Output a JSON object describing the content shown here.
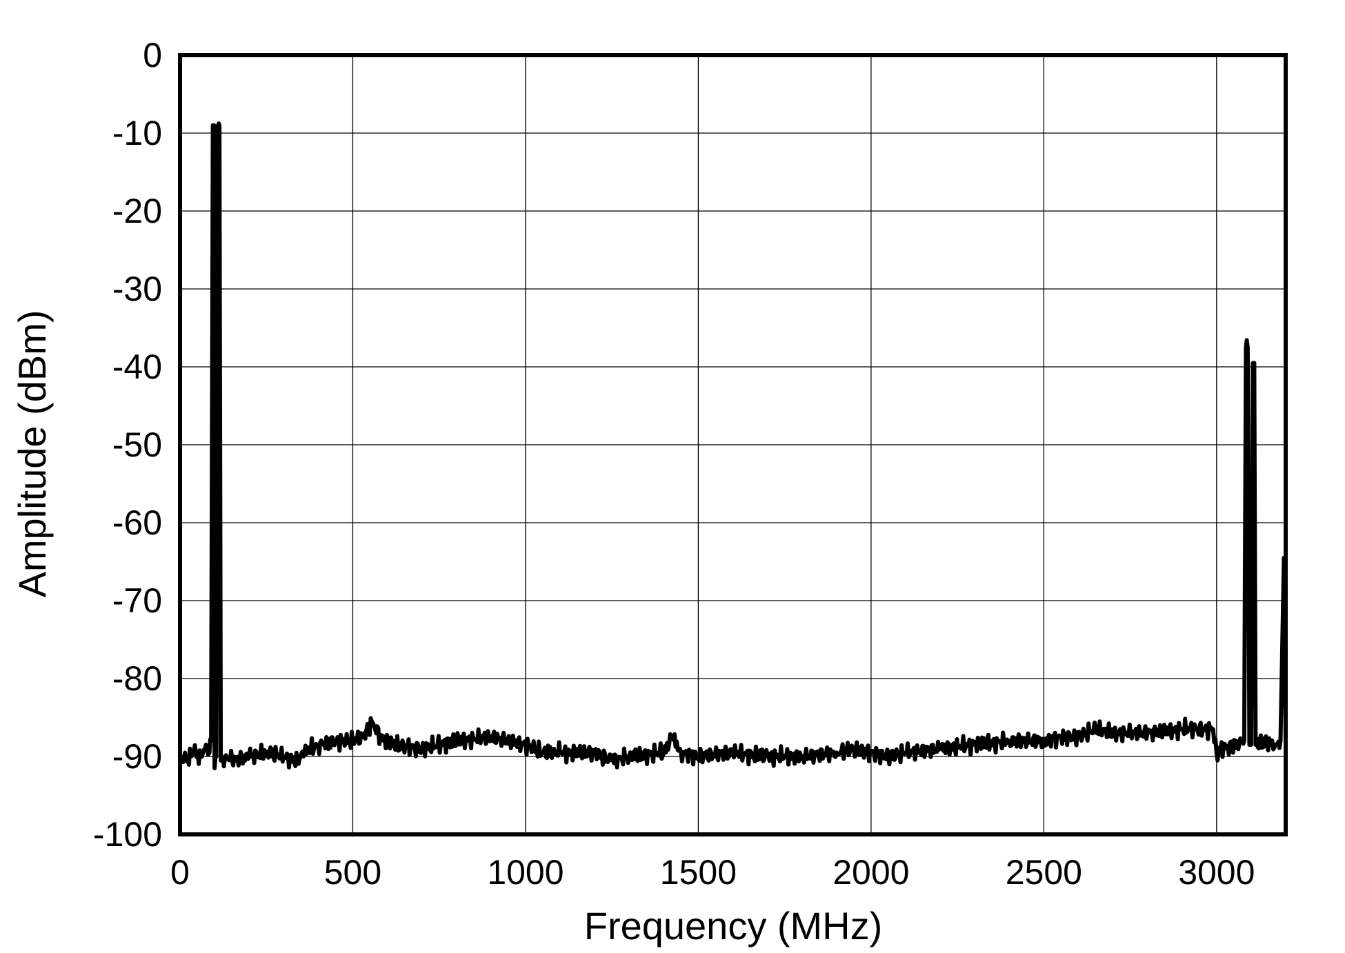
{
  "chart_data": {
    "type": "line",
    "title": "",
    "xlabel": "Frequency (MHz)",
    "ylabel": "Amplitude (dBm)",
    "xlim": [
      0,
      3200
    ],
    "ylim": [
      -100,
      0
    ],
    "grid": true,
    "legend": "none",
    "x_ticks": [
      "0",
      "500",
      "1000",
      "1500",
      "2000",
      "2500",
      "3000"
    ],
    "y_ticks": [
      "0",
      "-10",
      "-20",
      "-30",
      "-40",
      "-50",
      "-60",
      "-70",
      "-80",
      "-90",
      "-100"
    ],
    "colors": {
      "line": "#000000",
      "grid": "#000000",
      "background": "#ffffff"
    },
    "series": [
      {
        "points": [
          [
            0,
            -90
          ],
          [
            20,
            -90.5
          ],
          [
            40,
            -89.5
          ],
          [
            60,
            -90
          ],
          [
            75,
            -88.5
          ],
          [
            85,
            -89.5
          ],
          [
            90,
            -88
          ],
          [
            95,
            -9
          ],
          [
            98,
            -9
          ],
          [
            100,
            -91.5
          ],
          [
            105,
            -90
          ],
          [
            110,
            -9
          ],
          [
            114,
            -9
          ],
          [
            118,
            -90.5
          ],
          [
            130,
            -90
          ],
          [
            160,
            -90.5
          ],
          [
            200,
            -90
          ],
          [
            250,
            -89.5
          ],
          [
            300,
            -90
          ],
          [
            340,
            -90.5
          ],
          [
            360,
            -89.5
          ],
          [
            400,
            -88.5
          ],
          [
            450,
            -88
          ],
          [
            500,
            -88
          ],
          [
            530,
            -87.5
          ],
          [
            555,
            -85.5
          ],
          [
            580,
            -87.5
          ],
          [
            620,
            -88.5
          ],
          [
            700,
            -89
          ],
          [
            800,
            -88
          ],
          [
            900,
            -87.5
          ],
          [
            1000,
            -88.5
          ],
          [
            1050,
            -89.5
          ],
          [
            1100,
            -89.5
          ],
          [
            1200,
            -89.5
          ],
          [
            1250,
            -90.5
          ],
          [
            1300,
            -90
          ],
          [
            1400,
            -89.5
          ],
          [
            1425,
            -87.5
          ],
          [
            1450,
            -89.5
          ],
          [
            1500,
            -90
          ],
          [
            1600,
            -89.5
          ],
          [
            1700,
            -90
          ],
          [
            1800,
            -90
          ],
          [
            1900,
            -89.5
          ],
          [
            1950,
            -89
          ],
          [
            2000,
            -89.5
          ],
          [
            2050,
            -90
          ],
          [
            2100,
            -89.5
          ],
          [
            2200,
            -89
          ],
          [
            2300,
            -88.5
          ],
          [
            2400,
            -88
          ],
          [
            2500,
            -88
          ],
          [
            2550,
            -87.5
          ],
          [
            2600,
            -87.5
          ],
          [
            2650,
            -86.5
          ],
          [
            2700,
            -87
          ],
          [
            2800,
            -87
          ],
          [
            2900,
            -86.5
          ],
          [
            2990,
            -86.5
          ],
          [
            3000,
            -89.5
          ],
          [
            3020,
            -89
          ],
          [
            3060,
            -88.5
          ],
          [
            3080,
            -88
          ],
          [
            3085,
            -37.5
          ],
          [
            3090,
            -37.5
          ],
          [
            3095,
            -88.5
          ],
          [
            3100,
            -88.5
          ],
          [
            3105,
            -39.5
          ],
          [
            3109,
            -39.5
          ],
          [
            3113,
            -88.5
          ],
          [
            3140,
            -88
          ],
          [
            3170,
            -88.5
          ],
          [
            3185,
            -88
          ],
          [
            3195,
            -64.5
          ],
          [
            3200,
            -88.5
          ]
        ]
      }
    ]
  }
}
